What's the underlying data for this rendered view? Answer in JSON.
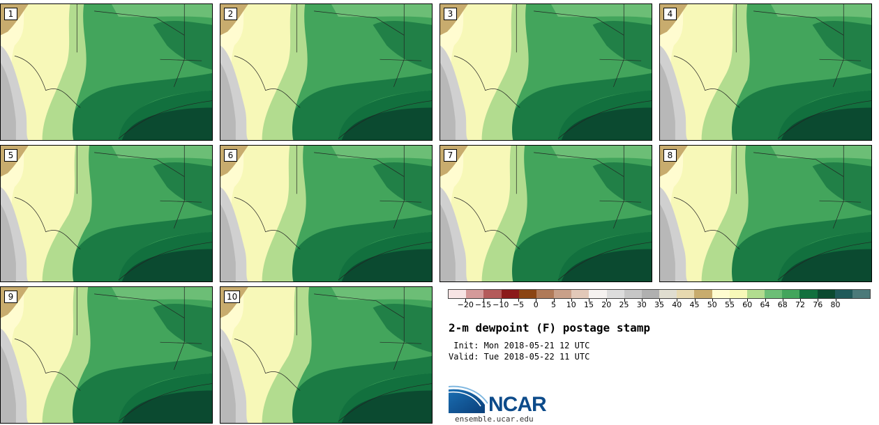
{
  "title": "2-m dewpoint (F) postage stamp",
  "init_text": " Init: Mon 2018-05-21 12 UTC",
  "valid_text": "Valid: Tue 2018-05-22 11 UTC",
  "panels": [
    {
      "label": "1"
    },
    {
      "label": "2"
    },
    {
      "label": "3"
    },
    {
      "label": "4"
    },
    {
      "label": "5"
    },
    {
      "label": "6"
    },
    {
      "label": "7"
    },
    {
      "label": "8"
    },
    {
      "label": "9"
    },
    {
      "label": "10"
    }
  ],
  "colorbar": {
    "ticks": [
      "−20",
      "−15",
      "−10",
      "−5",
      "0",
      "5",
      "10",
      "15",
      "20",
      "25",
      "30",
      "35",
      "40",
      "45",
      "50",
      "55",
      "60",
      "64",
      "68",
      "72",
      "76",
      "80"
    ],
    "colors": [
      "#f7e4e4",
      "#d49a9a",
      "#b45a5a",
      "#8b1a1a",
      "#8b4513",
      "#b07a58",
      "#c9a089",
      "#e2c8b8",
      "#f5f2f0",
      "#dcdcdc",
      "#c6c6c6",
      "#b0b0b0",
      "#e0ddd0",
      "#e7d9b0",
      "#c8ac6e",
      "#fffcd0",
      "#f7f8b8",
      "#b2dc8f",
      "#6cbe76",
      "#43a55c",
      "#12703e",
      "#0b4a30",
      "#1f5a5a",
      "#4b7a7a"
    ]
  },
  "logo": {
    "text": "NCAR",
    "site": "ensemble.ucar.edu"
  }
}
